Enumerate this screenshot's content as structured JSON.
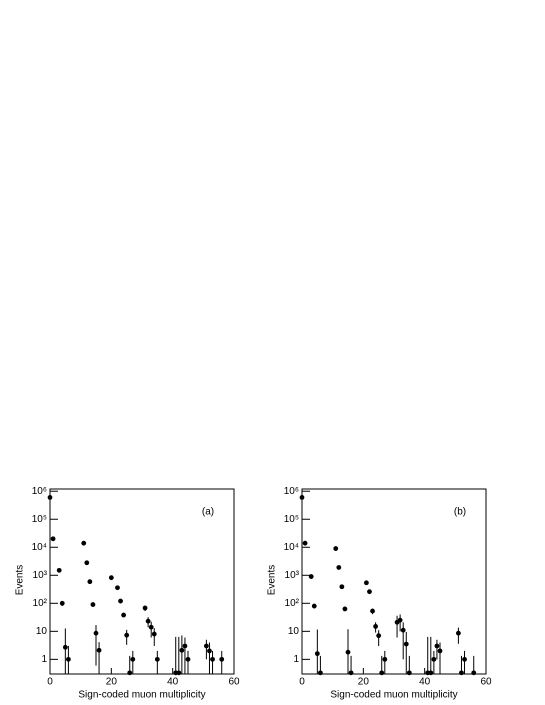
{
  "chart_data": [
    {
      "type": "scatter",
      "annotation": "(a)",
      "xlabel": "Sign-coded muon multiplicity",
      "ylabel": "Events",
      "log_y": true,
      "color": "#000000",
      "xlim": [
        0,
        60
      ],
      "xticks": [
        0,
        20,
        40,
        60
      ],
      "ylim": [
        0.3,
        1200000
      ],
      "yticks": [
        1,
        10,
        {
          "value": 100,
          "label": "10²"
        },
        {
          "value": 1000,
          "label": "10³"
        },
        {
          "value": 10000,
          "label": "10⁴"
        },
        {
          "value": 100000,
          "label": "10⁵"
        },
        {
          "value": 1000000,
          "label": "10⁶"
        }
      ],
      "x": [
        0,
        1,
        3,
        4,
        5,
        6,
        11,
        12,
        13,
        14,
        15,
        16,
        20,
        22,
        23,
        24,
        25,
        26,
        27,
        31,
        32,
        33,
        34,
        35,
        41,
        42,
        43,
        44,
        45,
        51,
        52,
        53,
        56
      ],
      "values": [
        600000,
        20000,
        1500,
        100,
        2.7,
        1,
        14000,
        2800,
        590,
        90,
        8.6,
        2.1,
        820,
        360,
        120,
        38,
        7.3,
        0.33,
        1,
        68,
        23,
        14,
        8,
        1,
        0.33,
        0.33,
        2.1,
        3,
        1,
        3,
        2,
        1,
        1
      ],
      "errors": [
        800,
        140,
        40,
        20,
        10,
        2,
        120,
        55,
        25,
        10,
        8,
        2,
        30,
        20,
        11,
        6,
        4,
        1,
        1,
        15,
        9,
        8,
        5,
        1,
        6,
        6,
        5,
        3,
        1,
        2,
        2,
        1,
        1
      ]
    },
    {
      "type": "scatter",
      "annotation": "(b)",
      "xlabel": "Sign-coded muon multiplicity",
      "ylabel": "Events",
      "log_y": true,
      "color": "#000000",
      "xlim": [
        0,
        60
      ],
      "xticks": [
        0,
        20,
        40,
        60
      ],
      "ylim": [
        0.3,
        1200000
      ],
      "yticks": [
        1,
        10,
        {
          "value": 100,
          "label": "10²"
        },
        {
          "value": 1000,
          "label": "10³"
        },
        {
          "value": 10000,
          "label": "10⁴"
        },
        {
          "value": 100000,
          "label": "10⁵"
        },
        {
          "value": 1000000,
          "label": "10⁶"
        }
      ],
      "x": [
        0,
        1,
        3,
        4,
        5,
        6,
        11,
        12,
        13,
        14,
        15,
        16,
        21,
        22,
        23,
        24,
        25,
        26,
        27,
        31,
        32,
        33,
        34,
        35,
        41,
        42,
        43,
        44,
        45,
        51,
        52,
        53,
        56
      ],
      "values": [
        600000,
        14000,
        900,
        80,
        1.6,
        0.33,
        9000,
        1900,
        390,
        63,
        1.8,
        0.33,
        540,
        260,
        53,
        15,
        7,
        0.33,
        1,
        21,
        25,
        11,
        3.5,
        0.33,
        0.33,
        0.33,
        1,
        3,
        2,
        8.6,
        0.33,
        1,
        0.33
      ],
      "errors": [
        800,
        120,
        30,
        15,
        10,
        1,
        95,
        45,
        20,
        10,
        10,
        1,
        25,
        16,
        12,
        6,
        4,
        1,
        1,
        15,
        15,
        10,
        6,
        1,
        6,
        6,
        1,
        2,
        2,
        5,
        1,
        1,
        1
      ]
    }
  ]
}
